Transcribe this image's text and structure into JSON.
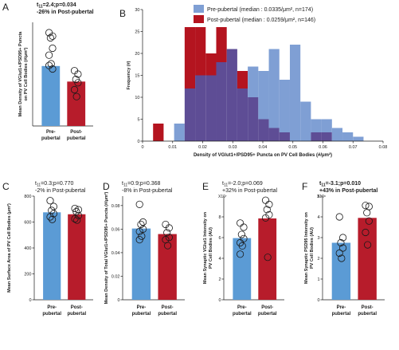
{
  "colors": {
    "pre": "#5b9bd5",
    "post": "#b71c2b",
    "pre_hist": "#7f9fd4",
    "post_hist": "#b4141f",
    "overlap": "#5e4d95"
  },
  "chart_data": [
    {
      "id": "A",
      "type": "bar",
      "letter": "A",
      "stat_lines": [
        {
          "prefix": "t",
          "sub": "11",
          "text": "=2.4;p=0.034",
          "bold": true
        },
        {
          "prefix": "",
          "sub": "",
          "text": "-26% in Post-pubertal",
          "bold": true
        }
      ],
      "ylabel": [
        "Mean Density of VGlut1+/PSD95+ Puncta",
        "on PV Cell Bodies (#/μm²)"
      ],
      "yticks": [],
      "ylim": [
        0,
        0.06
      ],
      "multiplier": "",
      "categories": [
        [
          "Pre-",
          "pubertal"
        ],
        [
          "Post-",
          "pubertal"
        ]
      ],
      "values": [
        0.0347,
        0.0257
      ],
      "points": [
        [
          0.054,
          0.052,
          0.051,
          0.045,
          0.041,
          0.036,
          0.035,
          0.033
        ],
        [
          0.032,
          0.03,
          0.027,
          0.025,
          0.021,
          0.017
        ]
      ]
    },
    {
      "id": "B",
      "type": "histogram",
      "letter": "B",
      "xlabel": "Density of VGlut1+/PSD95+ Puncta on PV Cell Bodies (#/μm²)",
      "ylabel": "Frequency (#)",
      "xlim": [
        0,
        0.08
      ],
      "ylim": [
        0,
        30
      ],
      "xticks": [
        "0",
        "0.01",
        "0.02",
        "0.03",
        "0.04",
        "0.05",
        "0.06",
        "0.07",
        "0.08"
      ],
      "yticks": [
        "0",
        "5",
        "10",
        "15",
        "20",
        "25",
        "30"
      ],
      "bin_width": 0.0035,
      "bin_start": 0.0035,
      "series": [
        {
          "name": "Pre-pubertal (median : 0.0335/μm², n=174)",
          "key": "pre",
          "values": [
            0,
            0,
            4,
            12,
            15,
            15,
            18,
            21,
            12,
            17,
            16,
            21,
            14,
            22,
            9,
            5,
            5,
            3,
            2,
            1
          ]
        },
        {
          "name": "Post-pubertal (median : 0.0259/μm², n=146)",
          "key": "post",
          "values": [
            4,
            0,
            0,
            26,
            26,
            20,
            26,
            21,
            16,
            10,
            5,
            3,
            2,
            0,
            0,
            2,
            2,
            0,
            0,
            0
          ]
        }
      ]
    },
    {
      "id": "C",
      "type": "bar",
      "letter": "C",
      "stat_lines": [
        {
          "prefix": "t",
          "sub": "11",
          "text": "=0.3;p=0.770",
          "bold": false
        },
        {
          "prefix": "",
          "sub": "",
          "text": "-2% in Post-pubertal",
          "bold": false
        }
      ],
      "ylabel": [
        "Mean Surface Area of PV Cell Bodies (μm²)"
      ],
      "yticks": [
        "0",
        "200",
        "400",
        "600",
        "800"
      ],
      "ylim": [
        0,
        800
      ],
      "multiplier": "",
      "categories": [
        [
          "Pre-",
          "pubertal"
        ],
        [
          "Post-",
          "pubertal"
        ]
      ],
      "values": [
        675,
        660
      ],
      "points": [
        [
          765,
          720,
          690,
          665,
          640,
          620
        ],
        [
          705,
          695,
          680,
          650,
          625,
          615
        ]
      ]
    },
    {
      "id": "D",
      "type": "bar",
      "letter": "D",
      "stat_lines": [
        {
          "prefix": "t",
          "sub": "11",
          "text": "=0.9;p=0.368",
          "bold": false
        },
        {
          "prefix": "",
          "sub": "",
          "text": "-8% in Post-pubertal",
          "bold": false
        }
      ],
      "ylabel": [
        "Mean Density of Total VGlut1+/PSD95+ Puncta (#/μm²)"
      ],
      "yticks": [
        "0",
        "0.02",
        "0.04",
        "0.06",
        "0.08"
      ],
      "ylim": [
        0,
        0.088
      ],
      "multiplier": "",
      "categories": [
        [
          "Pre-",
          "pubertal"
        ],
        [
          "Post-",
          "pubertal"
        ]
      ],
      "values": [
        0.0605,
        0.0558
      ],
      "points": [
        [
          0.081,
          0.066,
          0.064,
          0.06,
          0.058,
          0.054,
          0.051
        ],
        [
          0.064,
          0.061,
          0.057,
          0.053,
          0.051,
          0.046
        ]
      ]
    },
    {
      "id": "E",
      "type": "bar",
      "letter": "E",
      "stat_lines": [
        {
          "prefix": "t",
          "sub": "11",
          "text": "=-2.0;p=0.069",
          "bold": false
        },
        {
          "prefix": "",
          "sub": "",
          "text": "+32% in Post-pubertal",
          "bold": false
        }
      ],
      "ylabel": [
        "Mean Synaptic VGlut1 Intensity on",
        "PV Cell Bodies (AU)"
      ],
      "yticks": [
        "0",
        "2",
        "4",
        "6",
        "8"
      ],
      "ylim": [
        0,
        10
      ],
      "multiplier": "X10⁷",
      "categories": [
        [
          "Pre-",
          "pubertal"
        ],
        [
          "Post-",
          "pubertal"
        ]
      ],
      "values": [
        5.95,
        7.85
      ],
      "points": [
        [
          7.4,
          7.0,
          6.3,
          5.9,
          5.5,
          5.2,
          4.4
        ],
        [
          9.6,
          9.2,
          8.7,
          8.2,
          7.9,
          4.1
        ]
      ]
    },
    {
      "id": "F",
      "type": "bar",
      "letter": "F",
      "stat_lines": [
        {
          "prefix": "t",
          "sub": "11",
          "text": "=-3.1;p=0.010",
          "bold": true
        },
        {
          "prefix": "",
          "sub": "",
          "text": "+43% in Post-pubertal",
          "bold": true
        }
      ],
      "ylabel": [
        "Mean Synaptic PSD95 Intensity on",
        "PV Cell Bodies (AU)"
      ],
      "yticks": [
        "0",
        "1",
        "2",
        "3",
        "4",
        "5"
      ],
      "ylim": [
        0,
        5
      ],
      "multiplier": "X10⁸",
      "categories": [
        [
          "Pre-",
          "pubertal"
        ],
        [
          "Post-",
          "pubertal"
        ]
      ],
      "values": [
        2.75,
        3.95
      ],
      "points": [
        [
          4.0,
          3.0,
          2.75,
          2.5,
          2.25,
          2.0
        ],
        [
          4.55,
          4.5,
          4.2,
          3.8,
          3.25,
          2.65
        ]
      ]
    }
  ]
}
